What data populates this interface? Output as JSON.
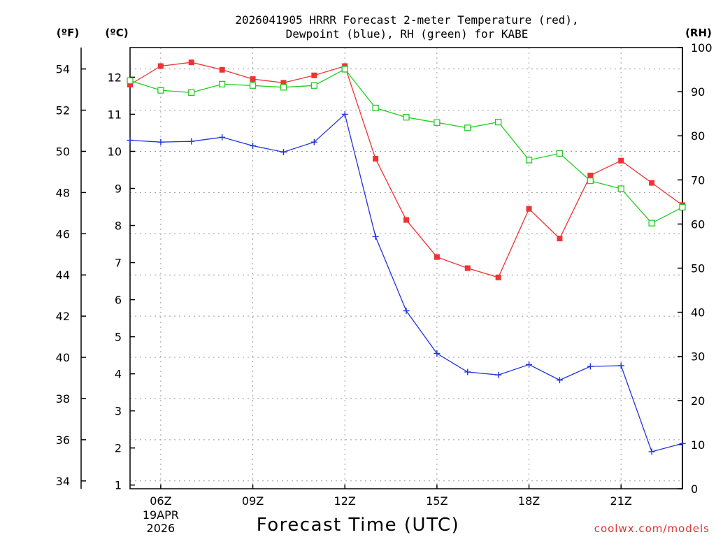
{
  "chart_data": {
    "type": "line",
    "title_line1": "2026041905 HRRR Forecast 2-meter Temperature (red),",
    "title_line2": "Dewpoint (blue), RH (green) for KABE",
    "xlabel": "Forecast Time (UTC)",
    "credit": "coolwx.com/models",
    "unit_f": "(ºF)",
    "unit_c": "(ºC)",
    "unit_rh": "(RH)",
    "x_hours": [
      5,
      6,
      7,
      8,
      9,
      10,
      11,
      12,
      13,
      14,
      15,
      16,
      17,
      18,
      19,
      20,
      21,
      22,
      23
    ],
    "x_ticks": [
      {
        "hour": 6,
        "label": "06Z",
        "sub1": "19APR",
        "sub2": "2026"
      },
      {
        "hour": 9,
        "label": "09Z",
        "sub1": "",
        "sub2": ""
      },
      {
        "hour": 12,
        "label": "12Z",
        "sub1": "",
        "sub2": ""
      },
      {
        "hour": 15,
        "label": "15Z",
        "sub1": "",
        "sub2": ""
      },
      {
        "hour": 18,
        "label": "18Z",
        "sub1": "",
        "sub2": ""
      },
      {
        "hour": 21,
        "label": "21Z",
        "sub1": "",
        "sub2": ""
      }
    ],
    "celsius_range": [
      0.9,
      12.8
    ],
    "celsius_ticks": [
      "1",
      "2",
      "3",
      "4",
      "5",
      "6",
      "7",
      "8",
      "9",
      "10",
      "11",
      "12"
    ],
    "fahrenheit_ticks": [
      "34",
      "36",
      "38",
      "40",
      "42",
      "44",
      "46",
      "48",
      "50",
      "52",
      "54"
    ],
    "rh_range": [
      0,
      100
    ],
    "rh_ticks": [
      "0",
      "10",
      "20",
      "30",
      "40",
      "50",
      "60",
      "70",
      "80",
      "90",
      "100"
    ],
    "series": [
      {
        "name": "Temperature",
        "unit": "C",
        "color": "#ee3333",
        "marker": "filled-square",
        "values": [
          11.8,
          12.3,
          12.4,
          12.2,
          11.95,
          11.85,
          12.05,
          12.3,
          9.8,
          8.15,
          7.15,
          6.85,
          6.6,
          8.45,
          7.65,
          9.35,
          9.75,
          9.15,
          8.55
        ]
      },
      {
        "name": "Dewpoint",
        "unit": "C",
        "color": "#2233dd",
        "marker": "plus",
        "values": [
          10.3,
          10.25,
          10.27,
          10.38,
          10.15,
          9.98,
          10.25,
          11.0,
          7.7,
          5.7,
          4.55,
          4.05,
          3.97,
          4.25,
          3.83,
          4.2,
          4.22,
          1.9,
          2.12
        ]
      },
      {
        "name": "RH",
        "unit": "%",
        "color": "#22cc22",
        "marker": "open-square",
        "values": [
          92.5,
          90.3,
          89.8,
          91.7,
          91.4,
          91.0,
          91.4,
          95.1,
          86.3,
          84.2,
          83.0,
          81.8,
          83.1,
          74.5,
          76.0,
          69.8,
          68.0,
          60.2,
          63.8
        ]
      }
    ]
  }
}
